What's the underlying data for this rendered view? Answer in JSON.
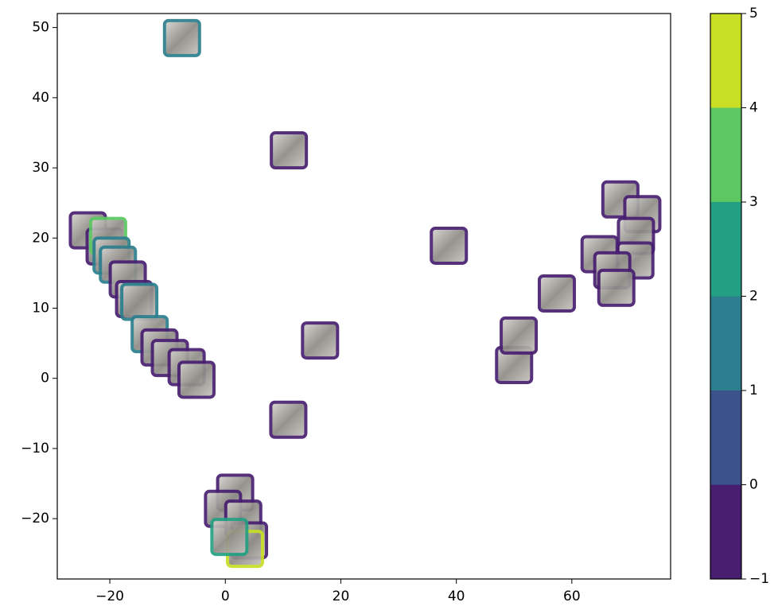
{
  "chart_data": {
    "type": "scatter",
    "x": [
      -7.5,
      11,
      -23.8,
      -20.9,
      -20.3,
      -19.7,
      -18.6,
      -16.9,
      -15.8,
      -14.9,
      -13.1,
      -11.4,
      -9.6,
      -6.7,
      -5.0,
      16.4,
      10.9,
      38.7,
      50,
      50.8,
      57.4,
      64.8,
      68.4,
      72.2,
      71.1,
      71,
      67,
      67.7,
      1.7,
      -0.4,
      3.1,
      4.1,
      3.4,
      0.7
    ],
    "y": [
      48.5,
      32.5,
      21.1,
      18.8,
      20.3,
      17.5,
      16.2,
      14.1,
      11.3,
      10.9,
      6.3,
      4.4,
      2.9,
      1.6,
      -0.2,
      5.4,
      -5.9,
      18.9,
      1.9,
      6.1,
      12.1,
      17.7,
      25.5,
      23.4,
      20.3,
      16.8,
      15.4,
      12.9,
      -16.3,
      -18.6,
      -20,
      -23.1,
      -24.3,
      -22.6
    ],
    "c": [
      1,
      -1,
      -1,
      -1,
      3,
      1,
      1,
      -1,
      -1,
      1,
      1,
      -1,
      -1,
      -1,
      -1,
      -1,
      -1,
      -1,
      -1,
      -1,
      -1,
      -1,
      -1,
      -1,
      -1,
      -1,
      -1,
      -1,
      -1,
      -1,
      -1,
      -1,
      4,
      2
    ],
    "xlim": [
      -29.1,
      77.1
    ],
    "ylim": [
      -28.6,
      52
    ],
    "xticks": [
      {
        "value": -20,
        "label": "−20"
      },
      0,
      20,
      40,
      60
    ],
    "yticks": [
      {
        "value": -20,
        "label": "−20"
      },
      {
        "value": -10,
        "label": "−10"
      },
      0,
      10,
      20,
      30,
      40,
      50
    ],
    "colorbar": {
      "lim": [
        -1,
        5
      ],
      "ticks": [
        {
          "value": -1,
          "label": "−1"
        },
        0,
        1,
        2,
        3,
        4,
        5
      ],
      "colors": [
        "#481f70",
        "#3b528b",
        "#2c7f8e",
        "#23a083",
        "#5cc863",
        "#c8df24"
      ]
    }
  }
}
